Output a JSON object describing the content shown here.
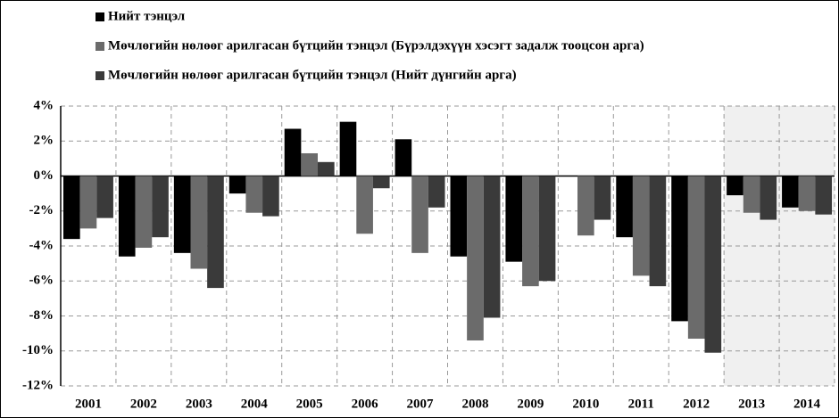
{
  "chart_data": {
    "type": "bar",
    "categories": [
      "2001",
      "2002",
      "2003",
      "2004",
      "2005",
      "2006",
      "2007",
      "2008",
      "2009",
      "2010",
      "2011",
      "2012",
      "2013",
      "2014"
    ],
    "series": [
      {
        "name": "Нийт тэнцэл",
        "color": "#000000",
        "values": [
          -3.6,
          -4.6,
          -4.4,
          -1.0,
          2.7,
          3.1,
          2.1,
          -4.6,
          -4.9,
          null,
          -3.5,
          -8.3,
          -1.1,
          -1.8
        ]
      },
      {
        "name": "Мөчлөгийн нөлөөг арилгасан бүтцийн тэнцэл (Бүрэлдэхүүн хэсэгт задалж тооцсон арга)",
        "color": "#6b6b6b",
        "values": [
          -3.0,
          -4.1,
          -5.3,
          -2.1,
          1.3,
          -3.3,
          -4.4,
          -9.4,
          -6.3,
          -3.4,
          -5.7,
          -9.3,
          -2.1,
          -2.0
        ]
      },
      {
        "name": "Мөчлөгийн нөлөөг арилгасан бүтцийн тэнцэл (Нийт дүнгийн арга)",
        "color": "#3a3a3a",
        "values": [
          -2.4,
          -3.5,
          -6.4,
          -2.3,
          0.8,
          -0.7,
          -1.8,
          -8.1,
          -6.0,
          -2.5,
          -6.3,
          -10.1,
          -2.5,
          -2.2
        ]
      }
    ],
    "ylim": [
      -12,
      4
    ],
    "yticks": [
      {
        "value": -12,
        "label": "-12%"
      },
      {
        "value": -10,
        "label": "-10%"
      },
      {
        "value": -8,
        "label": "-8%"
      },
      {
        "value": -6,
        "label": "-6%"
      },
      {
        "value": -4,
        "label": "-4%"
      },
      {
        "value": -2,
        "label": "-2%"
      },
      {
        "value": 0,
        "label": "0%"
      },
      {
        "value": 2,
        "label": "2%"
      },
      {
        "value": 4,
        "label": "4%"
      }
    ],
    "grid": true
  }
}
